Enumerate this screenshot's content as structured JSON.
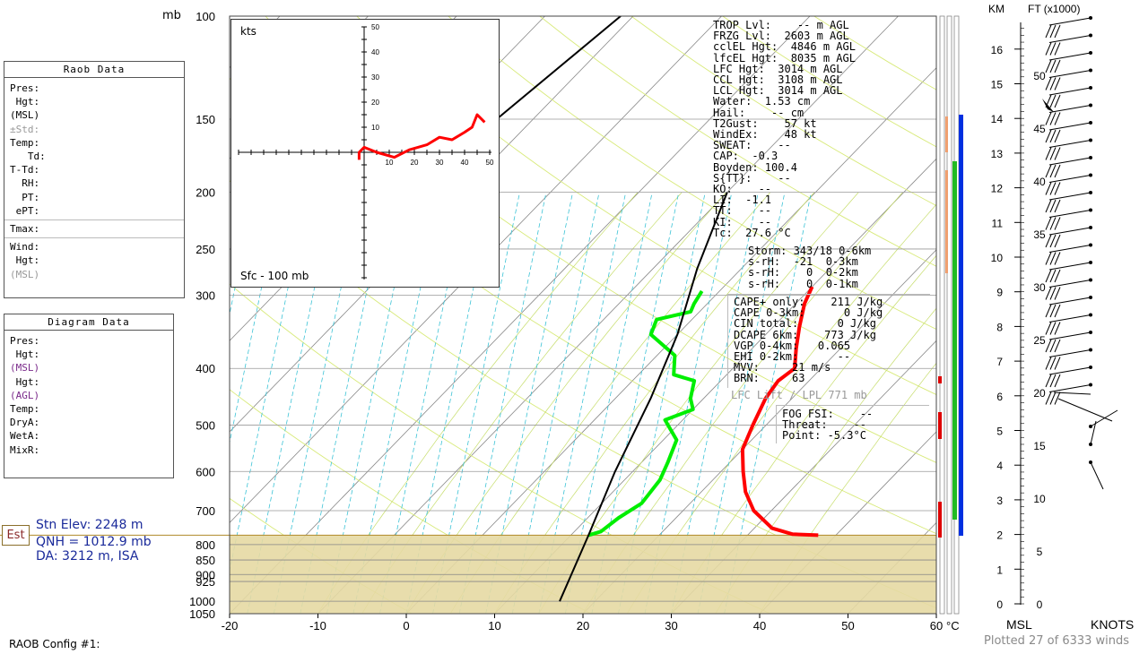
{
  "left_panels": {
    "raob": {
      "title": "Raob Data",
      "rows": [
        "Pres:",
        " Hgt:",
        "(MSL)",
        "±Std:",
        "Temp:",
        "   Td:",
        "T-Td:",
        "  RH:",
        "  PT:",
        " ePT:"
      ],
      "rows2": [
        "Tmax:"
      ],
      "rows3": [
        "Wind:",
        " Hgt:",
        "(MSL)"
      ]
    },
    "diagram": {
      "title": "Diagram Data",
      "rows": [
        "Pres:",
        " Hgt:",
        "(MSL)",
        " Hgt:",
        "(AGL)",
        "Temp:",
        "",
        "DryA:",
        "WetA:",
        "MixR:"
      ]
    }
  },
  "station": {
    "est_label": "Est",
    "elev": "Stn Elev: 2248 m",
    "qnh": "QNH = 1012.9 mb",
    "da": "DA: 3212 m, ISA"
  },
  "config_label": "RAOB Config #1:",
  "plotted": "Plotted 27 of 6333 winds",
  "indices_top": [
    "TROP Lvl:    -- m AGL",
    "FRZG Lvl:  2603 m AGL",
    "cclEL Hgt:  4846 m AGL",
    "lfcEL Hgt:  8035 m AGL",
    "LFC Hgt:  3014 m AGL",
    "CCL Hgt:  3108 m AGL",
    "LCL Hgt:  3014 m AGL",
    "Water:  1.53 cm",
    "Hail:    -- cm",
    "T2Gust:    57 kt",
    "WindEx:    48 kt",
    "SWEAT:    --",
    "CAP:  -0.3",
    "Boyden: 100.4",
    "S{TT}:    --",
    "KO:    --",
    "LI:  -1.1",
    "TT:    --",
    "KI:    --",
    "Tc:  27.6 °C"
  ],
  "storm_rows": [
    "Storm: 343/18 0-6km",
    "s-rH:  -21  0-3km",
    "s-rH:    0  0-2km",
    "s-rH:    0  0-1km"
  ],
  "cape_rows": [
    "CAPE+ only:    211 J/kg",
    "CAPE 0-3km:      0 J/kg",
    "CIN total:      0 J/kg",
    "DCAPE 6km:    773 J/kg",
    "VGP 0-4km:   0.065",
    "EHI 0-2km:      --",
    "MVV:     21 m/s",
    "BRN:     63"
  ],
  "lfc_lift": "LFC Lift / LPL 771 mb",
  "fog_rows": [
    "FOG FSI:    --",
    "Threat:    --",
    "Point: -5.3°C"
  ],
  "hodograph": {
    "units": "kts",
    "layer": "Sfc - 100 mb",
    "ticks": [
      "10",
      "20",
      "30",
      "40",
      "50"
    ]
  },
  "right_axis": {
    "km_label": "KM",
    "ft_label": "FT (x1000)",
    "msl_label": "MSL",
    "knots_label": "KNOTS",
    "km_ticks": [
      "0",
      "1",
      "2",
      "3",
      "4",
      "5",
      "6",
      "7",
      "8",
      "9",
      "10",
      "11",
      "12",
      "13",
      "14",
      "15",
      "16"
    ],
    "ft_ticks": [
      "0",
      "5",
      "10",
      "15",
      "20",
      "25",
      "30",
      "35",
      "40",
      "45",
      "50"
    ]
  },
  "colors": {
    "temperature": "#ff0000",
    "dewpoint": "#00ee00",
    "parcel": "#000000",
    "surface_fill": "#e6d9a3",
    "mixing_ratio": "#3cc3d6",
    "dry_adiabat": "#d8ea7a",
    "isotherm": "#888888",
    "isobar": "#999999",
    "hodograph": "#ff0000"
  },
  "chart_data": [
    {
      "type": "line",
      "title": "",
      "xlabel": "°C",
      "ylabel": "mb",
      "xlim": [
        -20,
        60
      ],
      "x_ticks": [
        "-20",
        "-10",
        "0",
        "10",
        "20",
        "30",
        "40",
        "50",
        "60"
      ],
      "x_unit": "°C",
      "y_unit": "mb",
      "y_ticks": [
        "100",
        "150",
        "200",
        "250",
        "300",
        "400",
        "500",
        "600",
        "700",
        "800",
        "850",
        "900",
        "925",
        "1000",
        "1050"
      ],
      "ylim": [
        1050,
        100
      ],
      "y_scale": "log-pressure (skew-T)",
      "series": [
        {
          "x": [
            38.0,
            35.0,
            32.0,
            28.0,
            25.0,
            22.5,
            20.0,
            18.5,
            17.0,
            16.5,
            17.0,
            15.0,
            13.0,
            11.0,
            10.0
          ],
          "y": [
            771,
            768,
            750,
            700,
            650,
            600,
            550,
            500,
            450,
            420,
            400,
            370,
            340,
            310,
            290
          ]
        },
        {
          "x": [
            12.0,
            13.0,
            13.5,
            14.5,
            14.0,
            13.0,
            11.5,
            8.0,
            10.0,
            8.5,
            7.0,
            4.0,
            2.0,
            -3.0,
            -4.0,
            -1.0,
            -1.5,
            -2.0
          ],
          "y": [
            771,
            760,
            720,
            680,
            620,
            580,
            530,
            490,
            470,
            450,
            420,
            410,
            380,
            350,
            330,
            320,
            310,
            295
          ]
        },
        {
          "x": [
            16.0,
            12.0,
            8.0,
            4.0,
            0.0,
            -5.0,
            -10.0
          ],
          "y": [
            1000,
            771,
            600,
            450,
            350,
            270,
            200
          ]
        }
      ]
    },
    {
      "type": "line",
      "title": "",
      "xlabel": "",
      "ylabel": "",
      "xlim": [
        -50,
        50
      ],
      "ylim": [
        -50,
        50
      ],
      "series": [
        {
          "x": [
            -2,
            -2,
            0,
            5,
            12,
            18,
            25,
            30,
            35,
            40,
            43,
            45,
            48
          ],
          "y": [
            -3,
            0,
            2,
            0,
            -2,
            1,
            3,
            6,
            5,
            8,
            10,
            15,
            12
          ]
        }
      ]
    }
  ]
}
